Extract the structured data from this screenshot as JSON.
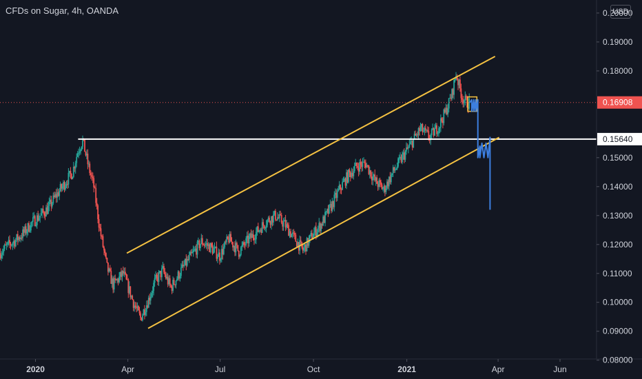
{
  "title": "CFDs on Sugar, 4h, OANDA",
  "currency_label": "USD",
  "colors": {
    "background": "#131722",
    "up_candle": "#26a69a",
    "down_candle": "#ef5350",
    "channel": "#f5c242",
    "projection": "#3d7fe0",
    "current_price_line": "#ef5350",
    "level_line": "#ffffff",
    "axis_text": "#d1d4dc"
  },
  "chart_data": {
    "type": "line",
    "title": "CFDs on Sugar, 4h, OANDA",
    "xlabel": "",
    "ylabel": "",
    "x_ticks": [
      "2020",
      "Apr",
      "Jul",
      "Oct",
      "2021",
      "Apr",
      "Jun"
    ],
    "y_ticks": [
      "0.20000",
      "0.19000",
      "0.18000",
      "0.15000",
      "0.14000",
      "0.13000",
      "0.12000",
      "0.11000",
      "0.10000",
      "0.09000",
      "0.08000"
    ],
    "ylim": [
      0.0735,
      0.2045
    ],
    "xlim": [
      "2019-11-27",
      "2021-07-07"
    ],
    "grid": false,
    "series": [
      {
        "style": "candles",
        "x": [
          "2019-11-27",
          "2019-12-05",
          "2019-12-13",
          "2019-12-21",
          "2019-12-29",
          "2020-01-06",
          "2020-01-14",
          "2020-01-22",
          "2020-01-30",
          "2020-02-07",
          "2020-02-12",
          "2020-02-17",
          "2020-02-22",
          "2020-02-28",
          "2020-03-05",
          "2020-03-12",
          "2020-03-18",
          "2020-03-23",
          "2020-03-28",
          "2020-04-02",
          "2020-04-08",
          "2020-04-14",
          "2020-04-22",
          "2020-04-28",
          "2020-05-06",
          "2020-05-14",
          "2020-05-24",
          "2020-06-03",
          "2020-06-13",
          "2020-06-22",
          "2020-07-01",
          "2020-07-10",
          "2020-07-20",
          "2020-07-29",
          "2020-08-07",
          "2020-08-16",
          "2020-08-25",
          "2020-09-03",
          "2020-09-11",
          "2020-09-21",
          "2020-09-30",
          "2020-10-09",
          "2020-10-18",
          "2020-10-27",
          "2020-11-05",
          "2020-11-13",
          "2020-11-22",
          "2020-12-01",
          "2020-12-10",
          "2020-12-19",
          "2020-12-28",
          "2021-01-06",
          "2021-01-15",
          "2021-01-24",
          "2021-02-02",
          "2021-02-09",
          "2021-02-15",
          "2021-02-19",
          "2021-02-22",
          "2021-02-25",
          "2021-03-01",
          "2021-03-04"
        ],
        "y": [
          0.117,
          0.1195,
          0.1215,
          0.124,
          0.1275,
          0.13,
          0.1325,
          0.137,
          0.141,
          0.145,
          0.152,
          0.156,
          0.148,
          0.14,
          0.125,
          0.112,
          0.106,
          0.108,
          0.11,
          0.105,
          0.099,
          0.0945,
          0.101,
          0.107,
          0.111,
          0.105,
          0.111,
          0.116,
          0.121,
          0.119,
          0.116,
          0.122,
          0.1175,
          0.1215,
          0.1245,
          0.128,
          0.13,
          0.127,
          0.123,
          0.118,
          0.123,
          0.127,
          0.1325,
          0.139,
          0.144,
          0.147,
          0.148,
          0.142,
          0.139,
          0.145,
          0.15,
          0.155,
          0.16,
          0.157,
          0.161,
          0.166,
          0.172,
          0.179,
          0.175,
          0.171,
          0.169,
          0.169
        ]
      },
      {
        "name": "",
        "style": "projection",
        "x": [
          "2021-03-04",
          "2021-03-06",
          "2021-03-06",
          "2021-03-08",
          "2021-03-08",
          "2021-03-10",
          "2021-03-10",
          "2021-03-12",
          "2021-03-12",
          "2021-03-14",
          "2021-03-14",
          "2021-03-16",
          "2021-03-18",
          "2021-03-20",
          "2021-03-22",
          "2021-03-24",
          "2021-03-24"
        ],
        "y": [
          0.169,
          0.17,
          0.166,
          0.17,
          0.166,
          0.17,
          0.166,
          0.17,
          0.15,
          0.154,
          0.15,
          0.155,
          0.15,
          0.155,
          0.15,
          0.157,
          0.132
        ]
      }
    ],
    "annotations": {
      "channel_upper": {
        "x": [
          "2020-03-31",
          "2021-03-29"
        ],
        "y": [
          0.117,
          0.185
        ]
      },
      "channel_lower": {
        "x": [
          "2020-04-21",
          "2021-04-02"
        ],
        "y": [
          0.091,
          0.157
        ]
      },
      "resistance_level": {
        "x": [
          "2020-02-12",
          "2021-07-07"
        ],
        "y": [
          0.1564,
          0.1564
        ]
      },
      "top_box": {
        "x": [
          "2021-03-02",
          "2021-03-11"
        ],
        "y": [
          0.166,
          0.171
        ]
      },
      "current_price": 0.16908,
      "level_label": "0.15640",
      "current_price_label": "0.16908"
    }
  }
}
